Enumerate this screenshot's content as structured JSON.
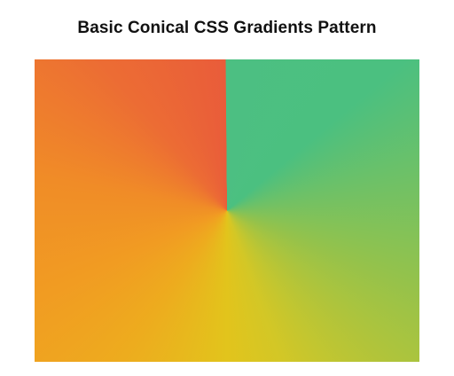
{
  "header": {
    "title": "Basic Conical CSS Gradients Pattern"
  },
  "pattern": {
    "type": "conic-gradient",
    "colors": [
      "#4cbf82",
      "#93c24c",
      "#e2c41c",
      "#f19c22",
      "#e95c3a"
    ]
  }
}
